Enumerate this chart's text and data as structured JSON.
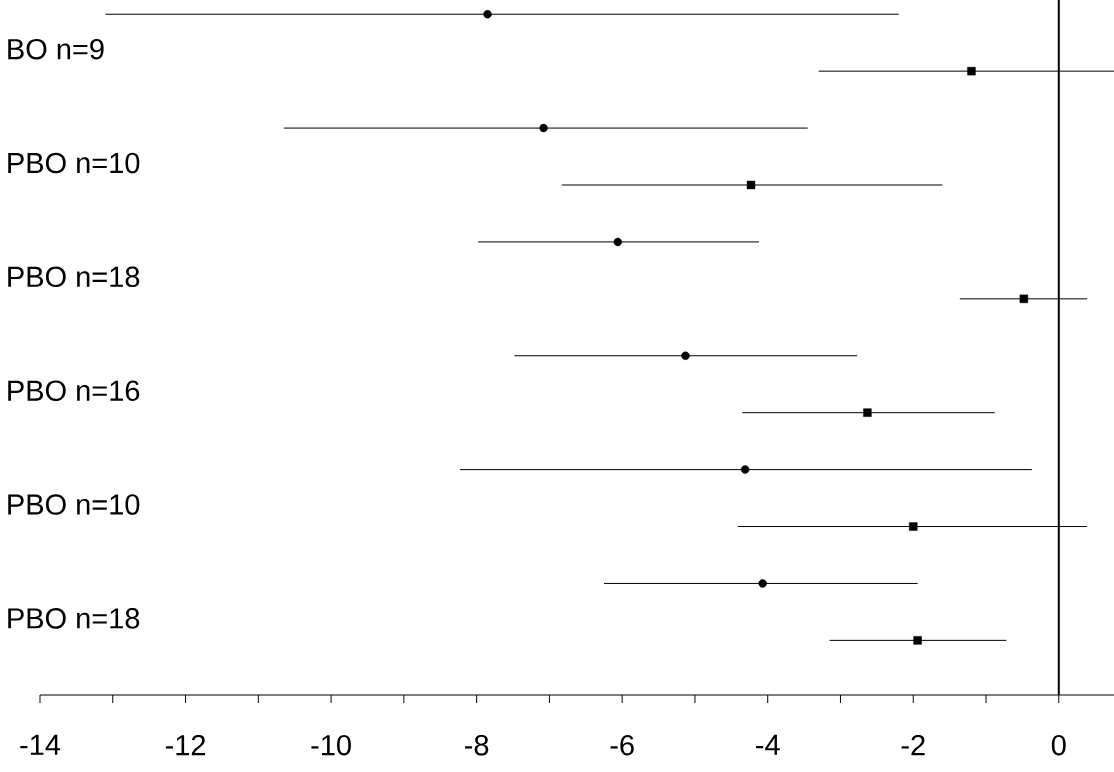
{
  "chart_data": {
    "type": "scatter",
    "orientation": "horizontal",
    "categories": [
      null,
      "BO n=9",
      null,
      "PBO n=10",
      null,
      "PBO n=18",
      null,
      "PBO n=16",
      null,
      "PBO n=10",
      null,
      "PBO n=18"
    ],
    "series": [
      {
        "marker": "circle",
        "color": "#000000",
        "values": [
          -7.85,
          null,
          -7.08,
          null,
          -6.06,
          null,
          -5.13,
          null,
          -4.31,
          null,
          -4.07,
          null
        ],
        "errors": [
          [
            -13.1,
            -2.2
          ],
          null,
          [
            -10.65,
            -3.45
          ],
          null,
          [
            -7.98,
            -4.12
          ],
          null,
          [
            -7.48,
            -2.77
          ],
          null,
          [
            -8.23,
            -0.37
          ],
          null,
          [
            -6.25,
            -1.94
          ],
          null
        ]
      },
      {
        "marker": "square",
        "color": "#000000",
        "values": [
          null,
          -1.2,
          null,
          -4.23,
          null,
          -0.48,
          null,
          -2.63,
          null,
          -2.0,
          null,
          -1.94
        ],
        "errors": [
          null,
          [
            -3.3,
            0.8
          ],
          null,
          [
            -6.83,
            -1.6
          ],
          null,
          [
            -1.36,
            0.39
          ],
          null,
          [
            -4.35,
            -0.88
          ],
          null,
          [
            -4.41,
            0.39
          ],
          null,
          [
            -3.15,
            -0.72
          ]
        ]
      }
    ],
    "xlim": [
      -14,
      0.8
    ],
    "xticks": [
      -14,
      {
        "value": -13,
        "label": null
      },
      -12,
      {
        "value": -11,
        "label": null
      },
      -10,
      {
        "value": -9,
        "label": null
      },
      -8,
      {
        "value": -7,
        "label": null
      },
      -6,
      {
        "value": -5,
        "label": null
      },
      -4,
      {
        "value": -3,
        "label": null
      },
      -2,
      {
        "value": -1,
        "label": null
      },
      0
    ],
    "ref_lines": [
      {
        "axis": "x",
        "value": 0,
        "color": "#000000"
      }
    ],
    "grid": false
  }
}
